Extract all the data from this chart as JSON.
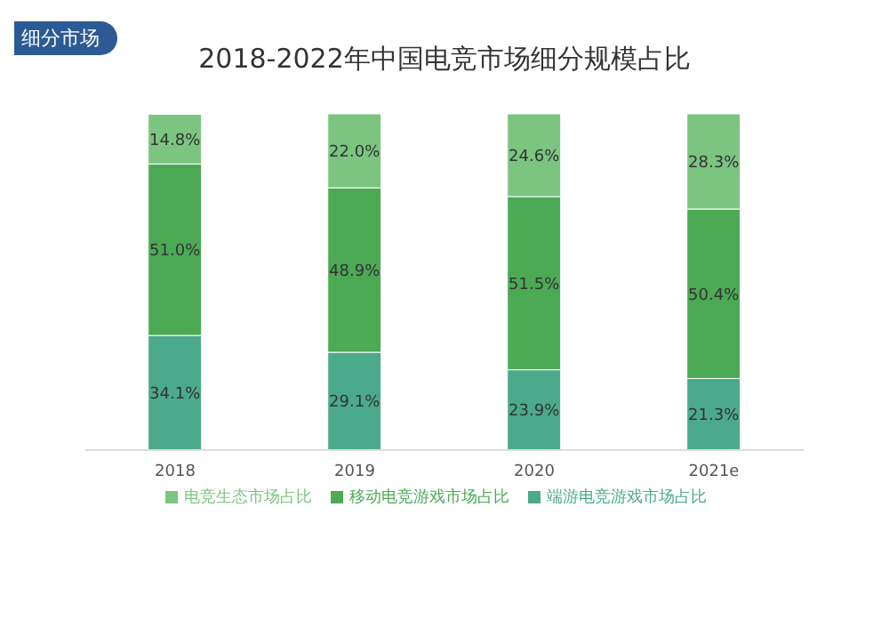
{
  "chart_data": {
    "type": "bar",
    "title": "2018-2022年中国电竞市场细分规模占比",
    "annotations": [
      "细分市场"
    ],
    "categories": [
      "2018",
      "2019",
      "2020",
      "2021e"
    ],
    "stacked": true,
    "legend": "bottom",
    "series": [
      {
        "name": "端游电竞游戏市场占比",
        "color": "#4caa8c",
        "values": [
          34.1,
          29.1,
          23.9,
          21.3
        ],
        "value_labels": [
          "34.1%",
          "29.1%",
          "23.9%",
          "21.3%"
        ]
      },
      {
        "name": "移动电竞游戏市场占比",
        "color": "#4caa55",
        "values": [
          51.0,
          48.9,
          51.5,
          50.4
        ],
        "value_labels": [
          "51.0%",
          "48.9%",
          "51.5%",
          "50.4%"
        ]
      },
      {
        "name": "电竞生态市场占比",
        "color": "#7cc580",
        "values": [
          14.8,
          22.0,
          24.6,
          28.3
        ],
        "value_labels": [
          "14.8%",
          "22.0%",
          "24.6%",
          "28.3%"
        ]
      }
    ]
  }
}
